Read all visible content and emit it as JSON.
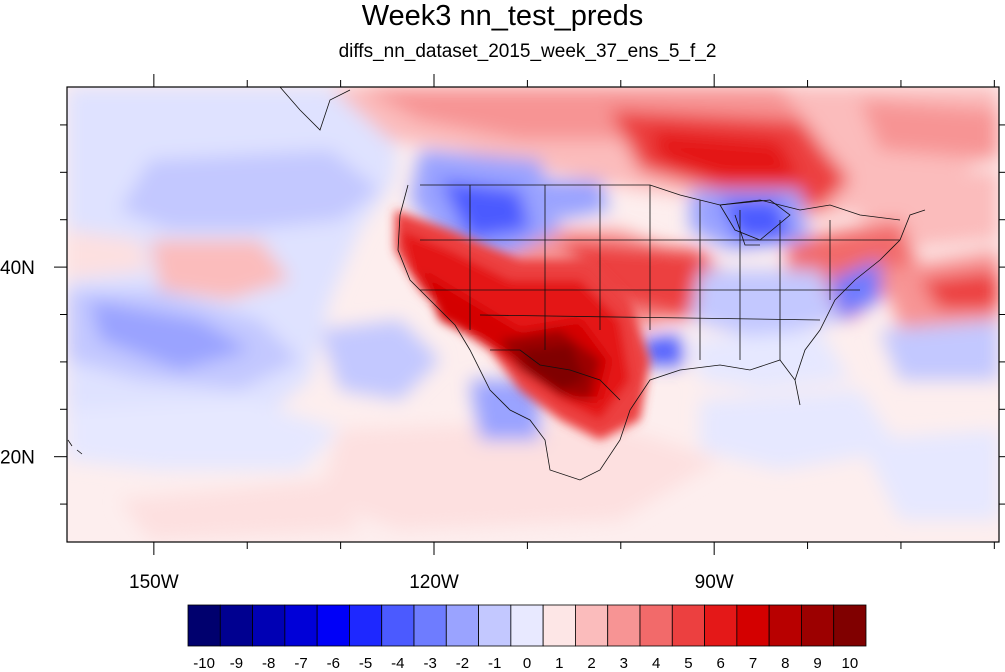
{
  "title": "Week3 nn_test_preds",
  "subtitle": "diffs_nn_dataset_2015_week_37_ens_5_f_2",
  "map": {
    "projection": "cylindrical-equidistant",
    "lon_range": [
      -159.3,
      -59.5
    ],
    "lat_range": [
      11,
      59
    ],
    "lon_ticks": [
      {
        "lon": -150,
        "label": "150W"
      },
      {
        "lon": -120,
        "label": "120W"
      },
      {
        "lon": -90,
        "label": "90W"
      }
    ],
    "lat_ticks": [
      {
        "lat": 40,
        "label": "40N"
      },
      {
        "lat": 20,
        "label": "20N"
      }
    ],
    "minor_lon_step": 10,
    "minor_lat_step": 5
  },
  "colorbar": {
    "labels": [
      "-10",
      "-9",
      "-8",
      "-7",
      "-6",
      "-5",
      "-4",
      "-3",
      "-2",
      "-1",
      "0",
      "1",
      "2",
      "3",
      "4",
      "5",
      "6",
      "7",
      "8",
      "9",
      "10"
    ],
    "colors": [
      "#00006e",
      "#000090",
      "#0000b4",
      "#0000d8",
      "#0000f8",
      "#1e28ff",
      "#4b5aff",
      "#6e7cff",
      "#9aa3ff",
      "#c3c8ff",
      "#e8e9ff",
      "#fde6e6",
      "#fbbcbc",
      "#f79494",
      "#f26a6a",
      "#ec4040",
      "#e41818",
      "#d40000",
      "#b80000",
      "#9c0000",
      "#800000"
    ]
  },
  "features": {
    "hot_southwest": "strong positive anomaly over the US southwest and northern Mexico",
    "warm_canada": "positive anomaly over central Canada",
    "cool_pacific": "weak negative anomaly over the eastern Pacific"
  }
}
